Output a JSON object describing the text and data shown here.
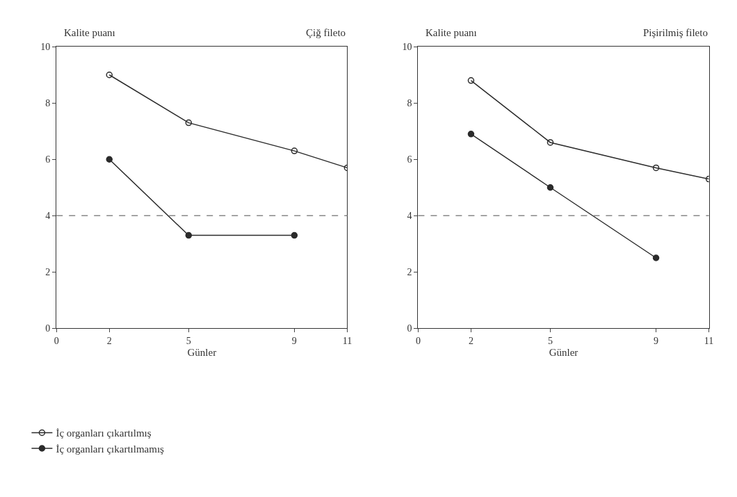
{
  "chart_data": [
    {
      "type": "line",
      "title": "Çiğ fileto",
      "ylabel": "Kalite puanı",
      "xlabel": "Günler",
      "x": [
        2,
        5,
        9,
        11
      ],
      "xlim": [
        0,
        11
      ],
      "xticks": [
        0,
        2,
        5,
        9,
        11
      ],
      "ylim": [
        0,
        10
      ],
      "yticks": [
        0,
        2,
        4,
        6,
        8,
        10
      ],
      "marker": "circle",
      "legend": "bottom left",
      "series": [
        {
          "name": "İç organları çıkartılmış",
          "color": "#2b2b2b",
          "values": [
            9,
            7.3,
            6.3,
            5.7
          ]
        },
        {
          "name": "İç organları çıkartılmamış",
          "color": "#2b2b2b",
          "values": [
            6,
            3.3,
            3.3,
            null
          ]
        }
      ],
      "ref_lines": [
        {
          "axis": "y",
          "value": 4,
          "color": "#888888",
          "line_style": "dashed"
        }
      ]
    },
    {
      "type": "line",
      "title": "Pişirilmiş fileto",
      "ylabel": "Kalite puanı",
      "xlabel": "Günler",
      "x": [
        2,
        5,
        9,
        11
      ],
      "xlim": [
        0,
        11
      ],
      "xticks": [
        0,
        2,
        5,
        9,
        11
      ],
      "ylim": [
        0,
        10
      ],
      "yticks": [
        0,
        2,
        4,
        6,
        8,
        10
      ],
      "marker": "circle",
      "series": [
        {
          "color": "#2b2b2b",
          "values": [
            8.8,
            6.6,
            5.7,
            5.3
          ]
        },
        {
          "color": "#2b2b2b",
          "values": [
            6.9,
            5,
            2.5,
            null
          ]
        }
      ],
      "ref_lines": [
        {
          "axis": "y",
          "value": 4,
          "color": "#888888",
          "line_style": "dashed"
        }
      ]
    }
  ]
}
